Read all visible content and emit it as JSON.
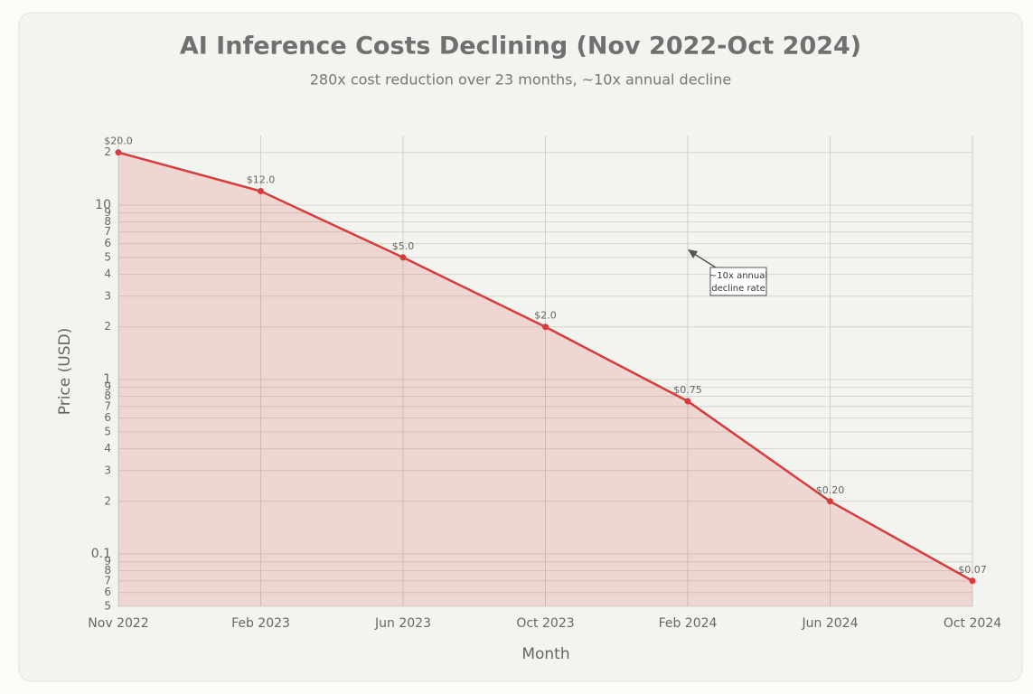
{
  "chart_data": {
    "type": "line",
    "title": "AI Inference Costs Declining (Nov 2022-Oct 2024)",
    "subtitle": "280x cost reduction over 23 months, ~10x annual decline",
    "x_label": "Month",
    "y_label": "Price (USD)",
    "categories": [
      "Nov 2022",
      "Feb 2023",
      "Jun 2023",
      "Oct 2023",
      "Feb 2024",
      "Jun 2024",
      "Oct 2024"
    ],
    "series": [
      {
        "name": "Price",
        "color": "#d63c3c",
        "values": [
          20,
          12,
          5,
          2,
          0.75,
          0.2,
          0.07
        ],
        "value_labels": [
          "$20.0",
          "$12.0",
          "$5.0",
          "$2.0",
          "$0.75",
          "$0.20",
          "$0.07"
        ]
      }
    ],
    "yscale": "log",
    "ylim": [
      0.05,
      25
    ],
    "grid": true,
    "fill": true,
    "yticks": [
      {
        "value": 0.05,
        "label": "5"
      },
      {
        "value": 0.06,
        "label": "6"
      },
      {
        "value": 0.07,
        "label": "7"
      },
      {
        "value": 0.08,
        "label": "8"
      },
      {
        "value": 0.09,
        "label": "9"
      },
      0.1,
      {
        "value": 0.2,
        "label": "2"
      },
      {
        "value": 0.3,
        "label": "3"
      },
      {
        "value": 0.4,
        "label": "4"
      },
      {
        "value": 0.5,
        "label": "5"
      },
      {
        "value": 0.6,
        "label": "6"
      },
      {
        "value": 0.7,
        "label": "7"
      },
      {
        "value": 0.8,
        "label": "8"
      },
      {
        "value": 0.9,
        "label": "9"
      },
      1,
      {
        "value": 2,
        "label": "2"
      },
      {
        "value": 3,
        "label": "3"
      },
      {
        "value": 4,
        "label": "4"
      },
      {
        "value": 5,
        "label": "5"
      },
      {
        "value": 6,
        "label": "6"
      },
      {
        "value": 7,
        "label": "7"
      },
      {
        "value": 8,
        "label": "8"
      },
      {
        "value": 9,
        "label": "9"
      },
      10,
      {
        "value": 20,
        "label": "2"
      }
    ],
    "annotation": [
      "~10x annual",
      "decline rate"
    ]
  }
}
